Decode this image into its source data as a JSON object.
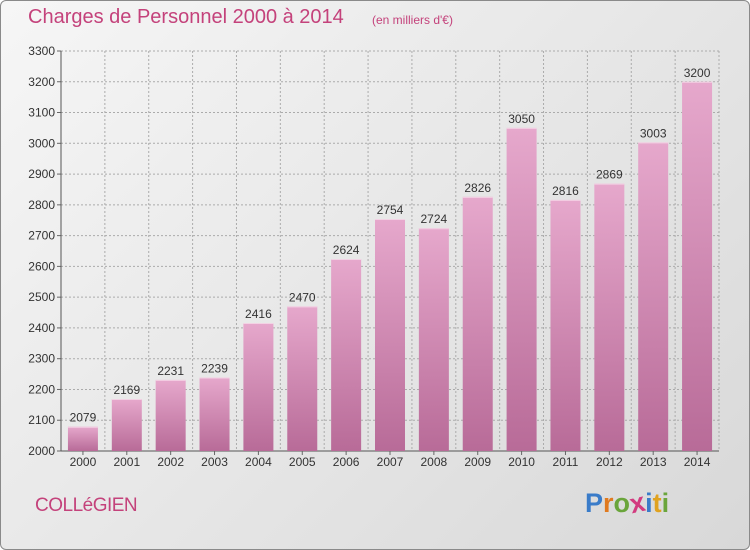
{
  "title": "Charges de Personnel 2000 à 2014",
  "subtitle": "(en milliers d'€)",
  "location": "COLLéGIEN",
  "logo": {
    "letters": [
      "P",
      "r",
      "o",
      "x",
      "i",
      "t",
      "i"
    ],
    "colors": [
      "#3a7cc9",
      "#e07a1f",
      "#6aa53b",
      "#d23b7f",
      "#3a7cc9",
      "#e0a21f",
      "#6aa53b"
    ]
  },
  "colors": {
    "bar_top": "#e6a8cc",
    "bar_bottom": "#b86b98",
    "text": "#c4427b",
    "grid": "#ababab"
  },
  "chart_data": {
    "type": "bar",
    "title": "Charges de Personnel 2000 à 2014",
    "subtitle": "(en milliers d'€)",
    "categories": [
      "2000",
      "2001",
      "2002",
      "2003",
      "2004",
      "2005",
      "2006",
      "2007",
      "2008",
      "2009",
      "2010",
      "2011",
      "2012",
      "2013",
      "2014"
    ],
    "values": [
      2079,
      2169,
      2231,
      2239,
      2416,
      2470,
      2624,
      2754,
      2724,
      2826,
      3050,
      2816,
      2869,
      3003,
      3200
    ],
    "ylim": [
      2000,
      3300
    ],
    "yticks": [
      2000,
      2100,
      2200,
      2300,
      2400,
      2500,
      2600,
      2700,
      2800,
      2900,
      3000,
      3100,
      3200,
      3300
    ],
    "grid": true,
    "xlabel": "",
    "ylabel": ""
  }
}
